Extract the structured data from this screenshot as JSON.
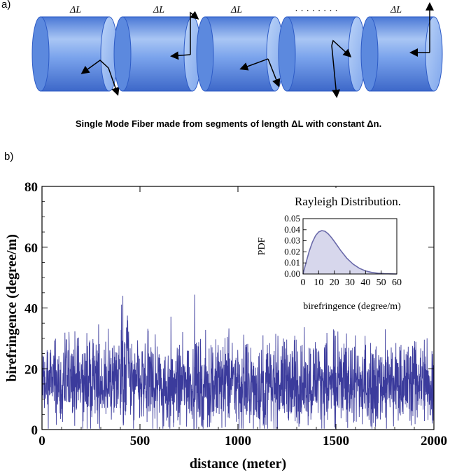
{
  "panel_a": {
    "label": "a)",
    "caption": "Single Mode Fiber made from segments of length ΔL with constant Δn.",
    "segment_labels": [
      "ΔL",
      "ΔL",
      "ΔL",
      "ΔL"
    ],
    "ellipsis": "· · · · · · · ·",
    "segment_color": "#6f9be8"
  },
  "panel_b": {
    "label": "b)",
    "inset": {
      "title": "Rayleigh Distribution.",
      "ylabel": "PDF",
      "xlabel": "birefringence (degree/m)",
      "x_ticks": [
        "0",
        "10",
        "20",
        "30",
        "40",
        "50",
        "60"
      ],
      "y_ticks": [
        "0.00",
        "0.01",
        "0.02",
        "0.03",
        "0.04",
        "0.05"
      ]
    }
  },
  "chart_data": [
    {
      "type": "line",
      "title": "",
      "xlabel": "distance (meter)",
      "ylabel": "birefringence (degree/m)",
      "xlim": [
        0,
        2000
      ],
      "ylim": [
        0,
        80
      ],
      "x_ticks": [
        0,
        500,
        1000,
        1500,
        2000
      ],
      "y_ticks": [
        0,
        20,
        40,
        60,
        80
      ],
      "series": [
        {
          "color": "#3b3b9c",
          "x": [
            0,
            50,
            100,
            150,
            200,
            250,
            300,
            350,
            400,
            413,
            450,
            500,
            550,
            600,
            650,
            700,
            750,
            800,
            850,
            900,
            950,
            1000,
            1050,
            1100,
            1150,
            1200,
            1250,
            1300,
            1350,
            1400,
            1450,
            1500,
            1550,
            1600,
            1650,
            1700,
            1750,
            1800,
            1850,
            1900,
            1950,
            2000
          ],
          "y": [
            15,
            16,
            14,
            17,
            15,
            16,
            14,
            16,
            18,
            44,
            15,
            14,
            16,
            15,
            13,
            14,
            16,
            15,
            14,
            15,
            16,
            14,
            15,
            13,
            14,
            15,
            16,
            14,
            15,
            17,
            15,
            14,
            16,
            15,
            14,
            15,
            16,
            14,
            15,
            16,
            15,
            14
          ]
        }
      ]
    },
    {
      "type": "area",
      "title": "Rayleigh Distribution.",
      "xlabel": "birefringence (degree/m)",
      "ylabel": "PDF",
      "xlim": [
        0,
        60
      ],
      "ylim": [
        0,
        0.05
      ],
      "series": [
        {
          "color": "#6a6aaa",
          "x": [
            0,
            2,
            4,
            6,
            8,
            10,
            12,
            14,
            16,
            18,
            20,
            24,
            28,
            32,
            36,
            40,
            44,
            48,
            52,
            56,
            60
          ],
          "y": [
            0,
            0.0108,
            0.0207,
            0.0288,
            0.0346,
            0.038,
            0.0392,
            0.0386,
            0.0364,
            0.0332,
            0.0294,
            0.0214,
            0.0143,
            0.0089,
            0.0052,
            0.0028,
            0.0014,
            0.0007,
            0.0003,
            0.0001,
            0.0
          ]
        }
      ]
    }
  ]
}
